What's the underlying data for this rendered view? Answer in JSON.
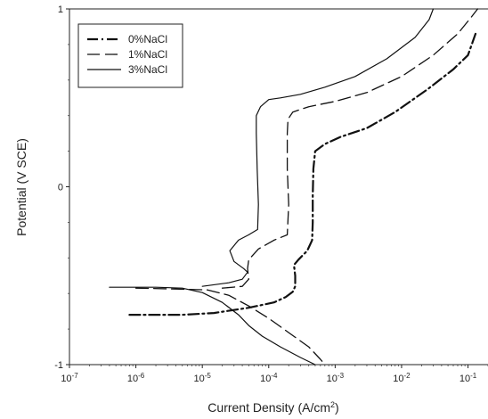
{
  "chart_data": {
    "type": "line",
    "xlabel": "Current Density (A/cm",
    "xlabel_sup": "2",
    "xlabel_close": ")",
    "ylabel": "Potential (V SCE)",
    "x_scale": "log",
    "xlim": [
      1e-07,
      0.2
    ],
    "ylim": [
      -1,
      1
    ],
    "x_ticks": [
      {
        "value": 1e-07,
        "base": "10",
        "exp": "-7"
      },
      {
        "value": 1e-06,
        "base": "10",
        "exp": "-6"
      },
      {
        "value": 1e-05,
        "base": "10",
        "exp": "-5"
      },
      {
        "value": 0.0001,
        "base": "10",
        "exp": "-4"
      },
      {
        "value": 0.001,
        "base": "10",
        "exp": "-3"
      },
      {
        "value": 0.01,
        "base": "10",
        "exp": "-2"
      },
      {
        "value": 0.1,
        "base": "10",
        "exp": "-1"
      }
    ],
    "y_ticks": [
      {
        "value": 1,
        "label": "1"
      },
      {
        "value": 0,
        "label": "0"
      },
      {
        "value": -1,
        "label": "-1"
      }
    ],
    "legend_position": "top-left",
    "grid": false,
    "series": [
      {
        "name": "0%NaCl",
        "dash": "12,4,2,4",
        "width": 2.2,
        "points": [
          [
            8e-07,
            -0.72
          ],
          [
            2e-06,
            -0.72
          ],
          [
            5e-06,
            -0.72
          ],
          [
            1.5e-05,
            -0.71
          ],
          [
            5e-05,
            -0.68
          ],
          [
            0.00012,
            -0.65
          ],
          [
            0.00018,
            -0.62
          ],
          [
            0.00023,
            -0.59
          ],
          [
            0.00025,
            -0.56
          ],
          [
            0.00025,
            -0.5
          ],
          [
            0.00024,
            -0.44
          ],
          [
            0.00028,
            -0.41
          ],
          [
            0.00038,
            -0.36
          ],
          [
            0.00045,
            -0.3
          ],
          [
            0.00046,
            -0.2
          ],
          [
            0.00046,
            -0.05
          ],
          [
            0.00047,
            0.1
          ],
          [
            0.0005,
            0.2
          ],
          [
            0.0007,
            0.24
          ],
          [
            0.0012,
            0.28
          ],
          [
            0.003,
            0.33
          ],
          [
            0.008,
            0.42
          ],
          [
            0.025,
            0.55
          ],
          [
            0.06,
            0.66
          ],
          [
            0.1,
            0.74
          ],
          [
            0.13,
            0.86
          ]
        ]
      },
      {
        "name": "1%NaCl",
        "dash": "14,6",
        "width": 1.3,
        "points": [
          [
            1e-06,
            -0.57
          ],
          [
            4e-06,
            -0.575
          ],
          [
            1.2e-05,
            -0.58
          ],
          [
            2.5e-05,
            -0.61
          ],
          [
            5e-05,
            -0.67
          ],
          [
            0.0001,
            -0.74
          ],
          [
            0.0002,
            -0.82
          ],
          [
            0.0004,
            -0.9
          ],
          [
            0.0006,
            -0.97
          ],
          [
            0.0007,
            -1.0
          ]
        ]
      },
      {
        "name": "3%NaCl",
        "dash": "",
        "width": 1.2,
        "points": [
          [
            4e-07,
            -0.565
          ],
          [
            2e-06,
            -0.565
          ],
          [
            5e-06,
            -0.57
          ],
          [
            1e-05,
            -0.595
          ],
          [
            2e-05,
            -0.65
          ],
          [
            3.5e-05,
            -0.72
          ],
          [
            5e-05,
            -0.78
          ],
          [
            8e-05,
            -0.84
          ],
          [
            0.00015,
            -0.9
          ],
          [
            0.0003,
            -0.96
          ],
          [
            0.0005,
            -1.0
          ]
        ]
      },
      {
        "name": "",
        "dash": "",
        "width": 1.2,
        "points": [
          [
            1e-05,
            -0.56
          ],
          [
            2.5e-05,
            -0.54
          ],
          [
            4e-05,
            -0.52
          ],
          [
            4.8e-05,
            -0.48
          ],
          [
            4.2e-05,
            -0.46
          ],
          [
            3e-05,
            -0.42
          ],
          [
            2.6e-05,
            -0.36
          ],
          [
            3.5e-05,
            -0.3
          ],
          [
            5e-05,
            -0.27
          ],
          [
            6.8e-05,
            -0.24
          ],
          [
            7e-05,
            -0.1
          ],
          [
            6.7e-05,
            0.1
          ],
          [
            6.5e-05,
            0.3
          ],
          [
            6.5e-05,
            0.4
          ],
          [
            7.5e-05,
            0.45
          ],
          [
            0.0001,
            0.49
          ],
          [
            0.00015,
            0.5
          ],
          [
            0.0003,
            0.52
          ],
          [
            0.0007,
            0.56
          ],
          [
            0.002,
            0.62
          ],
          [
            0.006,
            0.72
          ],
          [
            0.016,
            0.84
          ],
          [
            0.026,
            0.94
          ],
          [
            0.03,
            1.0
          ]
        ]
      },
      {
        "name": "",
        "dash": "14,6",
        "width": 1.3,
        "points": [
          [
            2e-05,
            -0.57
          ],
          [
            4e-05,
            -0.56
          ],
          [
            5e-05,
            -0.52
          ],
          [
            4.8e-05,
            -0.46
          ],
          [
            5e-05,
            -0.41
          ],
          [
            7e-05,
            -0.35
          ],
          [
            0.00012,
            -0.3
          ],
          [
            0.00019,
            -0.27
          ],
          [
            0.0002,
            -0.1
          ],
          [
            0.00019,
            0.1
          ],
          [
            0.00019,
            0.3
          ],
          [
            0.000195,
            0.38
          ],
          [
            0.00023,
            0.42
          ],
          [
            0.0004,
            0.45
          ],
          [
            0.001,
            0.48
          ],
          [
            0.003,
            0.53
          ],
          [
            0.01,
            0.62
          ],
          [
            0.03,
            0.74
          ],
          [
            0.07,
            0.86
          ],
          [
            0.11,
            0.95
          ],
          [
            0.14,
            1.0
          ]
        ]
      }
    ]
  }
}
